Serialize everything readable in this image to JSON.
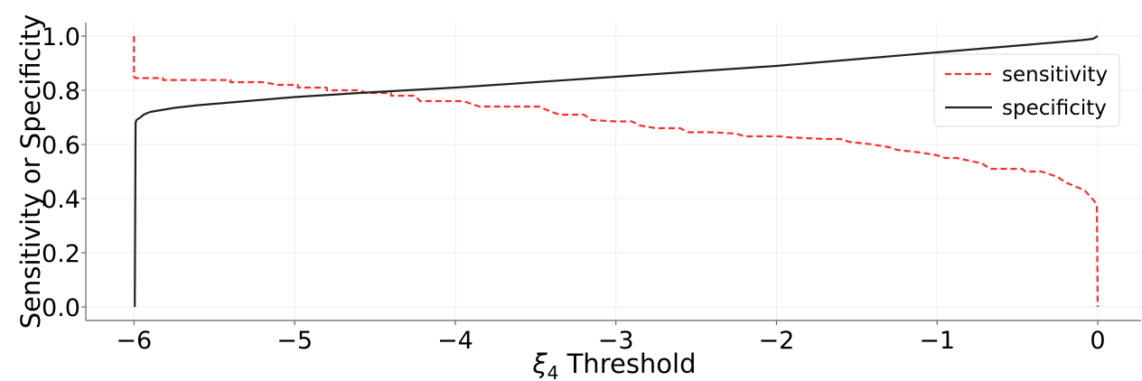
{
  "chart_data": {
    "type": "line",
    "title": "",
    "xlabel": "ξ₄ Threshold",
    "xlabel_symbol": "ξ",
    "xlabel_subscript": "4",
    "xlabel_rest": " Threshold",
    "ylabel": "Sensitivity or Specificity",
    "xlim": [
      -6.3,
      0.27
    ],
    "ylim": [
      -0.05,
      1.05
    ],
    "xticks": [
      -6,
      -5,
      -4,
      -3,
      -2,
      -1,
      0
    ],
    "xtick_labels": [
      "−6",
      "−5",
      "−4",
      "−3",
      "−2",
      "−1",
      "0"
    ],
    "yticks": [
      0.0,
      0.2,
      0.4,
      0.6,
      0.8,
      1.0
    ],
    "ytick_labels": [
      "0.0",
      "0.2",
      "0.4",
      "0.6",
      "0.8",
      "1.0"
    ],
    "grid": true,
    "legend_position": "top-right",
    "series": [
      {
        "name": "sensitivity",
        "color": "#ff2d2d",
        "style": "dashed",
        "x": [
          -6.0,
          -6.0,
          -5.99,
          -5.82,
          -5.82,
          -5.4,
          -5.4,
          -5.2,
          -5.1,
          -4.98,
          -4.98,
          -4.8,
          -4.8,
          -4.6,
          -4.55,
          -4.4,
          -4.4,
          -4.25,
          -4.22,
          -4.02,
          -3.95,
          -3.9,
          -3.85,
          -3.75,
          -3.7,
          -3.48,
          -3.4,
          -3.35,
          -3.2,
          -3.15,
          -3.0,
          -2.9,
          -2.85,
          -2.75,
          -2.6,
          -2.55,
          -2.4,
          -2.25,
          -2.2,
          -1.98,
          -1.9,
          -1.87,
          -1.7,
          -1.6,
          -1.55,
          -1.4,
          -1.3,
          -1.25,
          -1.1,
          -1.0,
          -0.95,
          -0.88,
          -0.8,
          -0.72,
          -0.67,
          -0.52,
          -0.47,
          -0.45,
          -0.35,
          -0.3,
          -0.25,
          -0.2,
          -0.12,
          -0.08,
          -0.05,
          -0.02,
          -0.005,
          0.0
        ],
        "y": [
          1.0,
          0.85,
          0.845,
          0.845,
          0.838,
          0.838,
          0.83,
          0.83,
          0.82,
          0.82,
          0.81,
          0.81,
          0.8,
          0.8,
          0.79,
          0.79,
          0.78,
          0.78,
          0.76,
          0.76,
          0.76,
          0.75,
          0.74,
          0.74,
          0.74,
          0.74,
          0.72,
          0.71,
          0.71,
          0.69,
          0.685,
          0.685,
          0.67,
          0.66,
          0.66,
          0.645,
          0.645,
          0.64,
          0.63,
          0.63,
          0.625,
          0.625,
          0.62,
          0.62,
          0.61,
          0.6,
          0.59,
          0.58,
          0.57,
          0.56,
          0.55,
          0.55,
          0.54,
          0.53,
          0.51,
          0.51,
          0.51,
          0.5,
          0.5,
          0.49,
          0.48,
          0.46,
          0.44,
          0.43,
          0.41,
          0.39,
          0.37,
          0.0
        ]
      },
      {
        "name": "specificity",
        "color": "#222222",
        "style": "solid",
        "x": [
          -5.995,
          -5.99,
          -5.985,
          -5.96,
          -5.94,
          -5.9,
          -5.85,
          -5.75,
          -5.6,
          -5.4,
          -5.2,
          -5.0,
          -4.6,
          -4.0,
          -3.5,
          -3.0,
          -2.5,
          -2.0,
          -1.5,
          -1.0,
          -0.6,
          -0.3,
          -0.1,
          -0.03,
          0.0
        ],
        "y": [
          0.0,
          0.68,
          0.69,
          0.7,
          0.71,
          0.72,
          0.725,
          0.735,
          0.745,
          0.755,
          0.765,
          0.775,
          0.79,
          0.81,
          0.83,
          0.85,
          0.87,
          0.89,
          0.915,
          0.94,
          0.96,
          0.975,
          0.985,
          0.99,
          1.0
        ]
      }
    ]
  }
}
